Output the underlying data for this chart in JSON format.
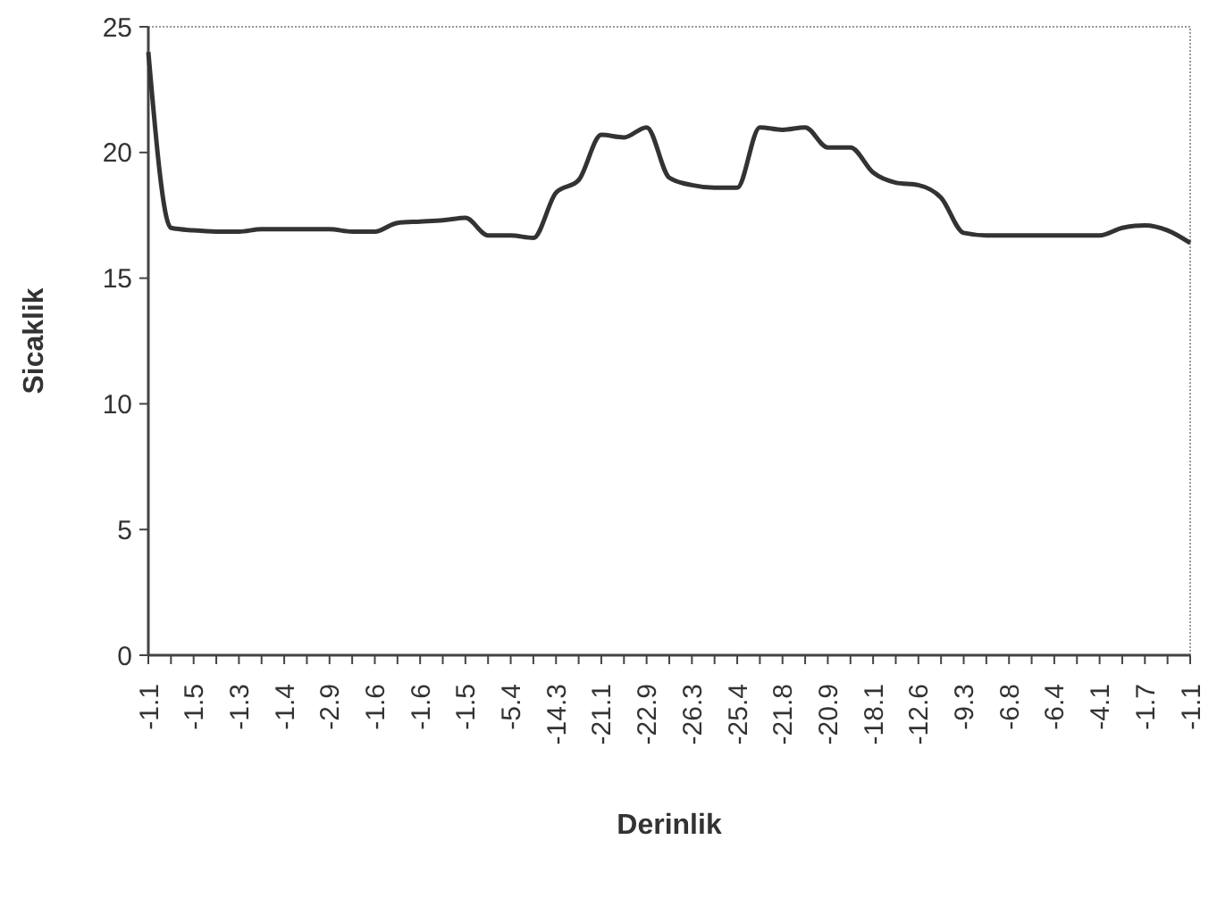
{
  "chart_data": {
    "type": "line",
    "xlabel": "Derinlik",
    "ylabel": "Sicaklik",
    "categories": [
      "-1.1",
      null,
      "-1.5",
      null,
      "-1.3",
      null,
      "-1.4",
      null,
      "-2.9",
      null,
      "-1.6",
      null,
      "-1.6",
      null,
      "-1.5",
      null,
      "-5.4",
      null,
      "-14.3",
      null,
      "-21.1",
      null,
      "-22.9",
      null,
      "-26.3",
      null,
      "-25.4",
      null,
      "-21.8",
      null,
      "-20.9",
      null,
      "-18.1",
      null,
      "-12.6",
      null,
      "-9.3",
      null,
      "-6.8",
      null,
      "-6.4",
      null,
      "-4.1",
      null,
      "-1.7",
      null,
      "-1.1"
    ],
    "series": [
      {
        "color": "#333333",
        "values": [
          24.0,
          17.0,
          16.9,
          16.85,
          16.85,
          16.95,
          16.95,
          16.95,
          16.95,
          16.85,
          16.85,
          17.2,
          17.25,
          17.3,
          17.4,
          16.7,
          16.7,
          16.6,
          18.4,
          18.9,
          20.7,
          20.6,
          21.0,
          19.0,
          18.7,
          18.6,
          18.6,
          21.0,
          20.9,
          21.0,
          20.2,
          20.2,
          19.2,
          18.8,
          18.7,
          18.2,
          16.8,
          16.7,
          16.7,
          16.7,
          16.7,
          16.7,
          16.7,
          17.0,
          17.1,
          16.9,
          16.4
        ]
      }
    ],
    "ylim": [
      0,
      25
    ],
    "yticks": [
      0,
      5,
      10,
      15,
      20,
      25
    ],
    "grid": false,
    "marker": "none",
    "line_style": "solid"
  }
}
